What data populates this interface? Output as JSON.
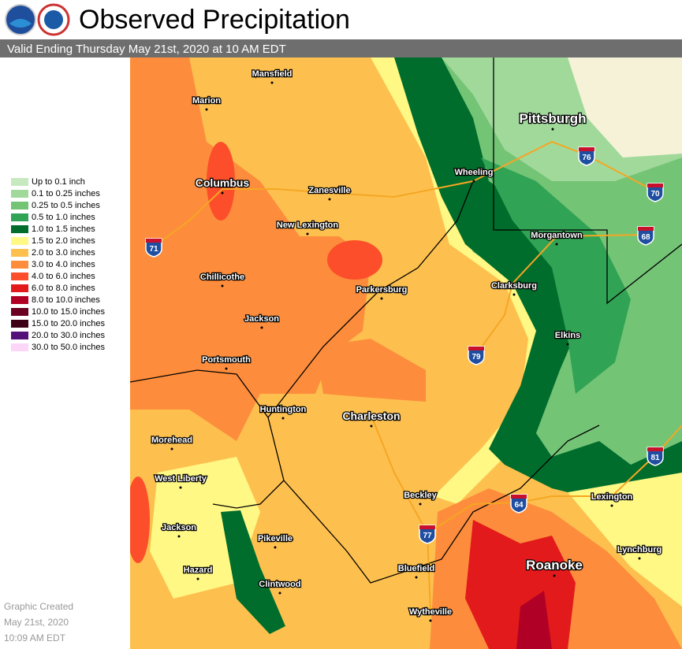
{
  "header": {
    "title": "Observed Precipitation",
    "subtitle": "Valid Ending Thursday May 21st, 2020 at 10 AM EDT"
  },
  "legend": {
    "items": [
      {
        "label": "Up to 0.1 inch",
        "color": "#c7e9c0"
      },
      {
        "label": "0.1 to 0.25 inches",
        "color": "#a1d99b"
      },
      {
        "label": "0.25 to 0.5 inches",
        "color": "#74c476"
      },
      {
        "label": "0.5 to 1.0 inches",
        "color": "#31a354"
      },
      {
        "label": "1.0 to 1.5 inches",
        "color": "#006d2c"
      },
      {
        "label": "1.5 to 2.0 inches",
        "color": "#fff885"
      },
      {
        "label": "2.0 to 3.0 inches",
        "color": "#fdc04f"
      },
      {
        "label": "3.0 to 4.0 inches",
        "color": "#fd8d3c"
      },
      {
        "label": "4.0 to 6.0 inches",
        "color": "#fc4e2a"
      },
      {
        "label": "6.0 to 8.0 inches",
        "color": "#e31a1c"
      },
      {
        "label": "8.0 to 10.0 inches",
        "color": "#b10026"
      },
      {
        "label": "10.0 to 15.0 inches",
        "color": "#6b0020"
      },
      {
        "label": "15.0 to 20.0 inches",
        "color": "#3d0016"
      },
      {
        "label": "20.0 to 30.0 inches",
        "color": "#54117a"
      },
      {
        "label": "30.0 to 50.0 inches",
        "color": "#fbd6f7"
      }
    ]
  },
  "map": {
    "cities": [
      "Mansfield",
      "Marion",
      "Columbus",
      "Zanesville",
      "New Lexington",
      "Chillicothe",
      "Jackson",
      "Portsmouth",
      "Parkersburg",
      "Huntington",
      "Charleston",
      "Morehead",
      "West Liberty",
      "Jackson",
      "Pikeville",
      "Hazard",
      "Clintwood",
      "Beckley",
      "Bluefield",
      "Wytheville",
      "Roanoke",
      "Lexington",
      "Lynchburg",
      "Elkins",
      "Clarksburg",
      "Morgantown",
      "Wheeling",
      "Pittsburgh"
    ],
    "shields": [
      "71",
      "76",
      "70",
      "68",
      "79",
      "77",
      "64",
      "81"
    ]
  },
  "footer": {
    "lines": [
      "Graphic Created",
      "May 21st, 2020",
      "10:09 AM EDT"
    ]
  }
}
